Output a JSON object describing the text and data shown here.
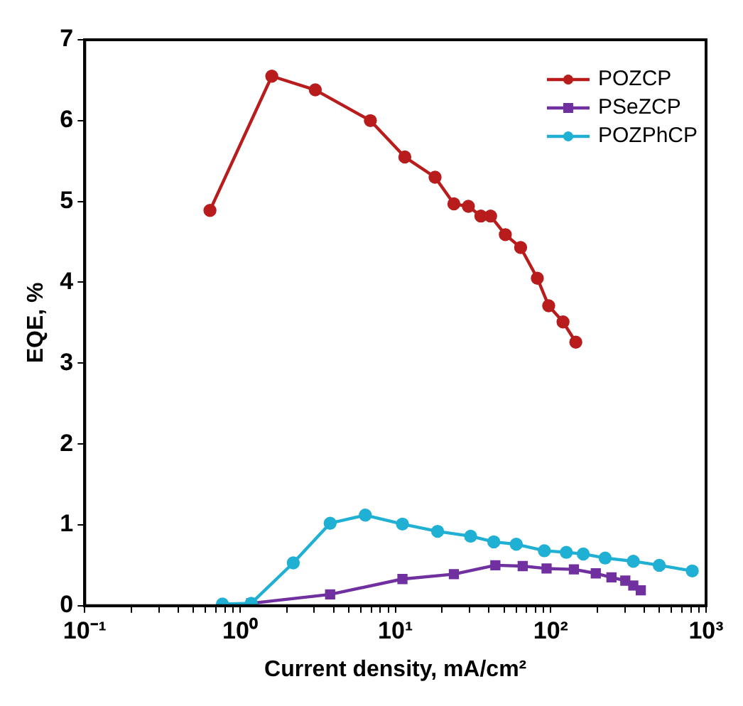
{
  "chart_data": {
    "type": "line",
    "xlabel": "Current density, mA/cm²",
    "ylabel": "EQE, %",
    "log": "x",
    "xlim": [
      0.1,
      1000
    ],
    "ylim": [
      0,
      7
    ],
    "xticks": [
      {
        "value": 0.1,
        "label": "10⁻¹"
      },
      {
        "value": 0.2,
        "label": null
      },
      {
        "value": 0.3,
        "label": null
      },
      {
        "value": 0.4,
        "label": null
      },
      {
        "value": 0.5,
        "label": null
      },
      {
        "value": 0.6,
        "label": null
      },
      {
        "value": 0.7,
        "label": null
      },
      {
        "value": 0.8,
        "label": null
      },
      {
        "value": 0.9,
        "label": null
      },
      {
        "value": 1,
        "label": "10⁰"
      },
      {
        "value": 2,
        "label": null
      },
      {
        "value": 3,
        "label": null
      },
      {
        "value": 4,
        "label": null
      },
      {
        "value": 5,
        "label": null
      },
      {
        "value": 6,
        "label": null
      },
      {
        "value": 7,
        "label": null
      },
      {
        "value": 8,
        "label": null
      },
      {
        "value": 9,
        "label": null
      },
      {
        "value": 10,
        "label": "10¹"
      },
      {
        "value": 20,
        "label": null
      },
      {
        "value": 30,
        "label": null
      },
      {
        "value": 40,
        "label": null
      },
      {
        "value": 50,
        "label": null
      },
      {
        "value": 60,
        "label": null
      },
      {
        "value": 70,
        "label": null
      },
      {
        "value": 80,
        "label": null
      },
      {
        "value": 90,
        "label": null
      },
      {
        "value": 100,
        "label": "10²"
      },
      {
        "value": 200,
        "label": null
      },
      {
        "value": 300,
        "label": null
      },
      {
        "value": 400,
        "label": null
      },
      {
        "value": 500,
        "label": null
      },
      {
        "value": 600,
        "label": null
      },
      {
        "value": 700,
        "label": null
      },
      {
        "value": 800,
        "label": null
      },
      {
        "value": 900,
        "label": null
      },
      {
        "value": 1000,
        "label": "10³"
      }
    ],
    "yticks": [
      0,
      1,
      2,
      3,
      4,
      5,
      6,
      7
    ],
    "grid": false,
    "legend": "top right",
    "line_style": "solid",
    "series": [
      {
        "name": "POZCP",
        "color": "#b81c1c",
        "marker": "circle",
        "x": [
          0.64,
          1.6,
          3.05,
          6.9,
          11.5,
          18,
          23.8,
          29.5,
          35.5,
          41,
          51,
          64,
          82,
          97,
          120,
          145
        ],
        "values": [
          4.89,
          6.55,
          6.38,
          6.0,
          5.55,
          5.3,
          4.97,
          4.94,
          4.82,
          4.82,
          4.59,
          4.43,
          4.05,
          3.71,
          3.51,
          3.26
        ]
      },
      {
        "name": "PSeZCP",
        "color": "#7030a0",
        "marker": "square",
        "x": [
          1.18,
          3.8,
          11.1,
          23.8,
          44,
          66,
          94,
          141,
          195,
          246,
          302,
          340,
          380
        ],
        "values": [
          0.03,
          0.14,
          0.33,
          0.39,
          0.5,
          0.49,
          0.46,
          0.45,
          0.4,
          0.35,
          0.31,
          0.25,
          0.19
        ]
      },
      {
        "name": "POZPhCP",
        "color": "#1fb0d4",
        "marker": "circle",
        "x": [
          0.77,
          1.18,
          2.2,
          3.8,
          6.4,
          11.1,
          18.7,
          30.5,
          43,
          60,
          91,
          126,
          162,
          224,
          340,
          500,
          815
        ],
        "values": [
          0.02,
          0.03,
          0.53,
          1.02,
          1.12,
          1.01,
          0.92,
          0.86,
          0.79,
          0.76,
          0.68,
          0.66,
          0.64,
          0.59,
          0.55,
          0.5,
          0.43
        ]
      }
    ]
  }
}
